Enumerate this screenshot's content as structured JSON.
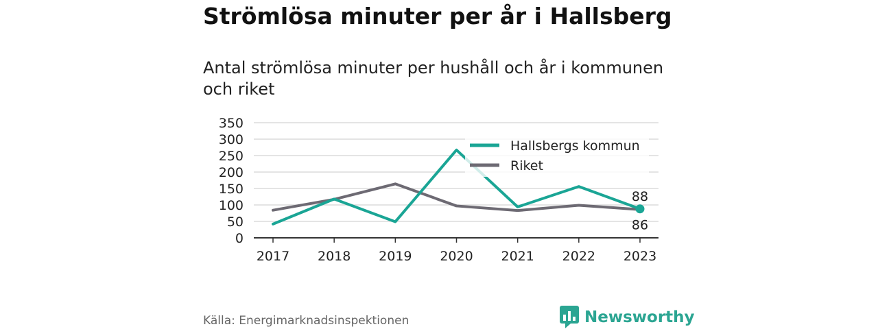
{
  "title": "Strömlösa minuter per år i Hallsberg",
  "subtitle": "Antal strömlösa minuter per hushåll och år i kommunen och riket",
  "source": "Källa: Energimarknadsinspektionen",
  "brand": "Newsworthy",
  "colors": {
    "kommun": "#1aa595",
    "riket": "#6d6a73",
    "brand": "#2ba592"
  },
  "chart_data": {
    "type": "line",
    "x": [
      "2017",
      "2018",
      "2019",
      "2020",
      "2021",
      "2022",
      "2023"
    ],
    "series": [
      {
        "name": "Hallsbergs kommun",
        "values": [
          42,
          118,
          49,
          267,
          94,
          156,
          88
        ]
      },
      {
        "name": "Riket",
        "values": [
          84,
          117,
          164,
          97,
          83,
          99,
          86
        ]
      }
    ],
    "ylim": [
      0,
      350
    ],
    "yticks": [
      0,
      50,
      100,
      150,
      200,
      250,
      300,
      350
    ],
    "end_labels": [
      "88",
      "86"
    ],
    "grid": true,
    "legend": "top-right"
  }
}
